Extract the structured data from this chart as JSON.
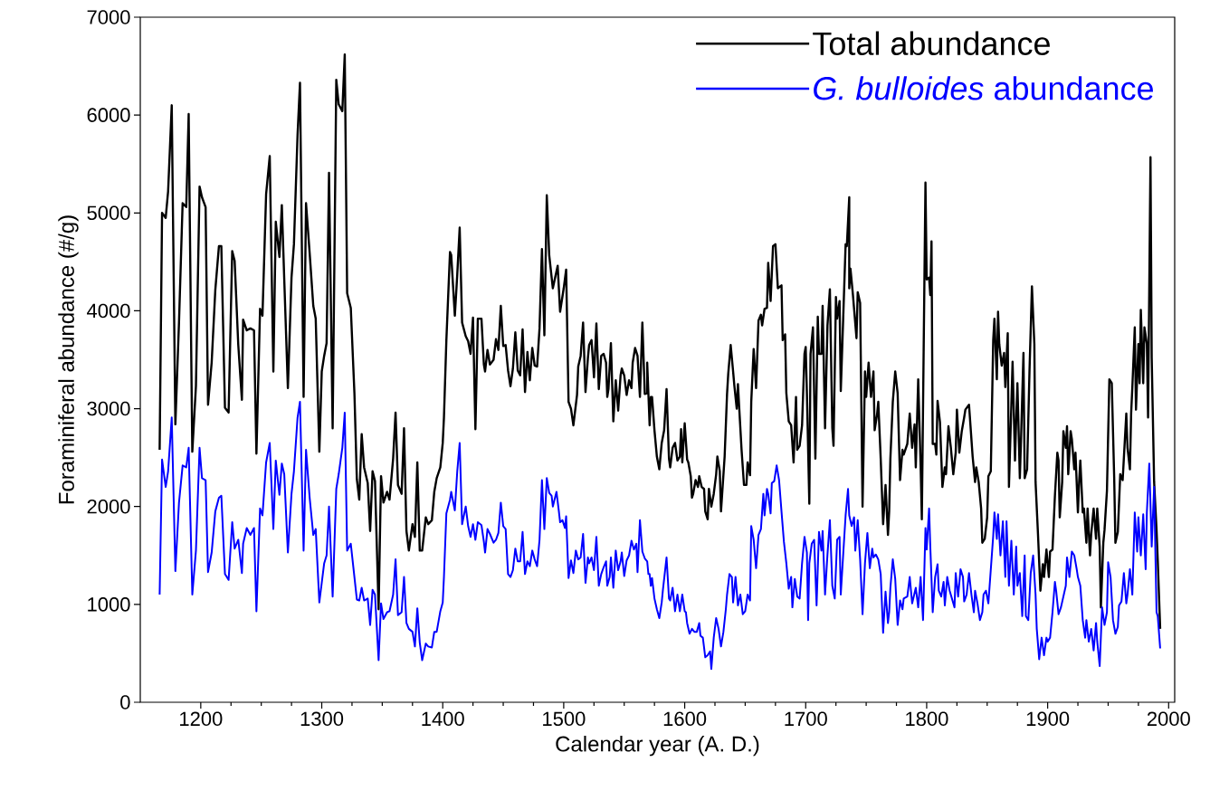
{
  "chart_data": {
    "type": "line",
    "xlabel": "Calendar year (A. D.)",
    "ylabel": "Foraminiferal abundance (#/g)",
    "xlim": [
      1150,
      2005
    ],
    "xticks": [
      1200,
      1300,
      1400,
      1500,
      1600,
      1700,
      1800,
      1900,
      2000
    ],
    "ylim": [
      0,
      7000
    ],
    "yticks": [
      0,
      1000,
      2000,
      3000,
      4000,
      5000,
      6000,
      7000
    ],
    "legend": "top right",
    "series": [
      {
        "name": "Total abundance",
        "color": "#000000",
        "x": [
          1166,
          1168,
          1171,
          1173,
          1176,
          1179,
          1182,
          1185,
          1188,
          1190,
          1193,
          1196,
          1199,
          1201,
          1204,
          1206,
          1209,
          1212,
          1215,
          1217,
          1220,
          1223,
          1226,
          1228,
          1231,
          1234,
          1235,
          1238,
          1241,
          1244,
          1246,
          1249,
          1251,
          1254,
          1257,
          1260,
          1262,
          1265,
          1267,
          1269,
          1272,
          1275,
          1277,
          1280,
          1282,
          1285,
          1287,
          1290,
          1293,
          1295,
          1298,
          1300,
          1302,
          1304,
          1306,
          1309,
          1312,
          1314,
          1317,
          1319,
          1321,
          1324,
          1327,
          1329,
          1331,
          1333,
          1335,
          1338,
          1340,
          1342,
          1344,
          1347,
          1349,
          1351,
          1354,
          1356,
          1359,
          1361,
          1363,
          1366,
          1368,
          1370,
          1372,
          1375,
          1377,
          1379,
          1381,
          1383,
          1386,
          1388,
          1391,
          1393,
          1395,
          1398,
          1400,
          1401,
          1403,
          1406,
          1407,
          1410,
          1412,
          1414,
          1416,
          1419,
          1421,
          1423,
          1425,
          1427,
          1429,
          1432,
          1434,
          1435,
          1437,
          1439,
          1442,
          1444,
          1446,
          1448,
          1450,
          1452,
          1454,
          1456,
          1458,
          1460,
          1462,
          1464,
          1466,
          1468,
          1470,
          1472,
          1474,
          1476,
          1478,
          1480,
          1482,
          1484,
          1486,
          1488,
          1491,
          1495,
          1497,
          1500,
          1502,
          1504,
          1506,
          1508,
          1511,
          1512,
          1514,
          1516,
          1518,
          1520,
          1521,
          1523,
          1525,
          1527,
          1529,
          1531,
          1533,
          1535,
          1536,
          1537,
          1539,
          1541,
          1543,
          1545,
          1547,
          1548,
          1550,
          1552,
          1554,
          1556,
          1557,
          1559,
          1561,
          1563,
          1565,
          1567,
          1569,
          1569,
          1571,
          1572,
          1573,
          1575,
          1577,
          1579,
          1581,
          1583,
          1585,
          1587,
          1588,
          1590,
          1592,
          1594,
          1596,
          1597,
          1598,
          1600,
          1602,
          1603,
          1605,
          1606,
          1607,
          1609,
          1611,
          1612,
          1614,
          1616,
          1617,
          1619,
          1620,
          1622,
          1624,
          1626,
          1627,
          1629,
          1630,
          1633,
          1635,
          1636,
          1638,
          1640,
          1641,
          1643,
          1644,
          1645,
          1647,
          1649,
          1651,
          1652,
          1654,
          1655,
          1657,
          1659,
          1661,
          1663,
          1664,
          1666,
          1668,
          1669,
          1671,
          1673,
          1675,
          1677,
          1680,
          1681,
          1683,
          1684,
          1686,
          1688,
          1690,
          1692,
          1693,
          1695,
          1697,
          1699,
          1700,
          1701,
          1703,
          1704,
          1706,
          1708,
          1710,
          1711,
          1713,
          1714,
          1716,
          1718,
          1720,
          1722,
          1723,
          1725,
          1726,
          1728,
          1729,
          1731,
          1733,
          1734,
          1736,
          1736,
          1737,
          1739,
          1742,
          1743,
          1745,
          1747,
          1749,
          1750,
          1752,
          1754,
          1756,
          1757,
          1759,
          1760,
          1762,
          1764,
          1766,
          1768,
          1769,
          1770,
          1772,
          1774,
          1776,
          1778,
          1780,
          1781,
          1784,
          1786,
          1788,
          1790,
          1791,
          1793,
          1795,
          1796,
          1799,
          1800,
          1802,
          1803,
          1804,
          1805,
          1807,
          1808,
          1809,
          1811,
          1813,
          1815,
          1816,
          1818,
          1820,
          1822,
          1824,
          1825,
          1827,
          1829,
          1831,
          1832,
          1835,
          1838,
          1840,
          1841,
          1843,
          1845,
          1846,
          1848,
          1850,
          1851,
          1853,
          1855,
          1856,
          1858,
          1859,
          1860,
          1862,
          1864,
          1865,
          1867,
          1868,
          1870,
          1871,
          1873,
          1874,
          1875,
          1877,
          1878,
          1880,
          1881,
          1883,
          1885,
          1887,
          1889,
          1890,
          1892,
          1894,
          1896,
          1897,
          1899,
          1901,
          1902,
          1904,
          1906,
          1908,
          1909,
          1910,
          1912,
          1913,
          1915,
          1916,
          1917,
          1919,
          1920,
          1922,
          1923,
          1925,
          1926,
          1927,
          1929,
          1930,
          1932,
          1933,
          1935,
          1936,
          1938,
          1940,
          1941,
          1943,
          1944,
          1946,
          1947,
          1949,
          1951,
          1953,
          1955,
          1956,
          1958,
          1960,
          1962,
          1965,
          1966,
          1968,
          1969,
          1970,
          1972,
          1973,
          1975,
          1976,
          1977,
          1979,
          1980,
          1982,
          1983,
          1985,
          1986,
          1988,
          1990,
          1991,
          1993
        ],
        "values": [
          2580,
          5000,
          4950,
          5220,
          6100,
          2840,
          3880,
          5100,
          5060,
          6010,
          2560,
          3230,
          5270,
          5160,
          5060,
          3040,
          3470,
          4210,
          4660,
          4660,
          3010,
          2960,
          4610,
          4510,
          3650,
          3090,
          3910,
          3800,
          3820,
          3800,
          2540,
          4020,
          3950,
          5190,
          5580,
          3380,
          4910,
          4550,
          5080,
          4320,
          3210,
          4340,
          4680,
          5800,
          6330,
          3120,
          5100,
          4590,
          4050,
          3920,
          2560,
          3380,
          3540,
          3670,
          5410,
          2800,
          6360,
          6110,
          6040,
          6620,
          4180,
          4030,
          3160,
          2280,
          2070,
          2740,
          2400,
          2240,
          1750,
          2360,
          2260,
          950,
          2310,
          2040,
          2150,
          2070,
          2490,
          2960,
          2220,
          2130,
          2800,
          1750,
          1550,
          1820,
          1690,
          2450,
          1550,
          1550,
          1890,
          1820,
          1860,
          2150,
          2290,
          2400,
          2650,
          2910,
          3700,
          4600,
          4570,
          3950,
          4370,
          4850,
          3880,
          3740,
          3690,
          3560,
          3930,
          2790,
          3920,
          3920,
          3450,
          3380,
          3600,
          3450,
          3500,
          3710,
          3600,
          4050,
          3640,
          3650,
          3390,
          3230,
          3410,
          3780,
          3390,
          3340,
          3810,
          3170,
          3580,
          3290,
          3620,
          3440,
          3430,
          3820,
          4630,
          3750,
          5180,
          4570,
          4230,
          4460,
          3990,
          4230,
          4420,
          3070,
          3000,
          2830,
          3140,
          3430,
          3540,
          3880,
          3170,
          3520,
          3650,
          3700,
          3320,
          3870,
          3200,
          3540,
          3560,
          3470,
          3120,
          3200,
          3670,
          2870,
          3290,
          2980,
          3340,
          3410,
          3340,
          3140,
          3290,
          3210,
          3470,
          3620,
          3540,
          3120,
          3880,
          3150,
          3160,
          3470,
          2830,
          3120,
          3120,
          2780,
          2510,
          2380,
          2650,
          2780,
          3200,
          2490,
          2400,
          2600,
          2650,
          2470,
          2510,
          2790,
          2450,
          2850,
          2480,
          2450,
          2310,
          2090,
          2130,
          2270,
          2200,
          2310,
          2200,
          2180,
          1950,
          1870,
          2180,
          2000,
          2130,
          2330,
          2510,
          2360,
          1950,
          2510,
          3150,
          3360,
          3650,
          3380,
          3240,
          3000,
          3250,
          3020,
          2580,
          2220,
          2220,
          2450,
          2320,
          3070,
          3610,
          3210,
          3900,
          3960,
          3850,
          4020,
          4030,
          4490,
          4100,
          4660,
          4680,
          4230,
          4260,
          3700,
          3760,
          3160,
          2870,
          2830,
          2450,
          3120,
          2580,
          2620,
          2830,
          3560,
          3630,
          3160,
          2030,
          3560,
          3830,
          2490,
          3940,
          3560,
          3560,
          4050,
          2800,
          3850,
          4220,
          2800,
          2620,
          4140,
          3920,
          4100,
          3180,
          3920,
          4680,
          4660,
          5160,
          4230,
          4430,
          4170,
          3720,
          4190,
          4080,
          2000,
          3380,
          3120,
          3470,
          3120,
          3380,
          2780,
          2940,
          3070,
          2490,
          1820,
          2220,
          1710,
          1950,
          2490,
          3070,
          3380,
          3160,
          2270,
          2580,
          2530,
          2640,
          2950,
          2600,
          2840,
          2400,
          3300,
          2420,
          1870,
          5310,
          4320,
          4340,
          4160,
          4710,
          2640,
          2640,
          2530,
          3080,
          2860,
          2200,
          2400,
          2330,
          2820,
          2600,
          2330,
          2550,
          2990,
          2550,
          2770,
          2910,
          2990,
          3040,
          2510,
          2250,
          2400,
          2250,
          1980,
          1630,
          1670,
          1890,
          2310,
          2360,
          3700,
          3920,
          3300,
          3990,
          3660,
          3440,
          3570,
          3220,
          3770,
          2200,
          3040,
          3480,
          2470,
          2880,
          3260,
          2290,
          2690,
          3570,
          2290,
          2380,
          3390,
          4250,
          3660,
          2250,
          1720,
          1140,
          1410,
          1280,
          1560,
          1280,
          1540,
          1560,
          2110,
          2550,
          2470,
          1890,
          2250,
          2770,
          2600,
          2820,
          2330,
          2770,
          2690,
          2380,
          2550,
          1940,
          2250,
          2470,
          1940,
          1980,
          1630,
          1980,
          1500,
          1720,
          1980,
          1670,
          1980,
          1590,
          970,
          1630,
          1760,
          2160,
          3300,
          3260,
          2290,
          1630,
          1740,
          2330,
          2270,
          2950,
          2600,
          2380,
          2950,
          3220,
          3830,
          2990,
          3660,
          3260,
          4010,
          3260,
          3830,
          3660,
          2910,
          5570,
          3520,
          2250,
          1760,
          1450,
          750
        ]
      },
      {
        "name": "*G. bulloides* abundance",
        "color": "#0000ff",
        "x": [
          1166,
          1168,
          1171,
          1173,
          1176,
          1179,
          1182,
          1185,
          1188,
          1190,
          1193,
          1196,
          1199,
          1201,
          1204,
          1206,
          1209,
          1212,
          1215,
          1217,
          1220,
          1223,
          1226,
          1228,
          1231,
          1234,
          1235,
          1238,
          1241,
          1244,
          1246,
          1249,
          1251,
          1254,
          1257,
          1260,
          1262,
          1265,
          1267,
          1269,
          1272,
          1275,
          1277,
          1280,
          1282,
          1285,
          1287,
          1290,
          1293,
          1295,
          1298,
          1300,
          1302,
          1304,
          1306,
          1309,
          1312,
          1314,
          1317,
          1319,
          1321,
          1324,
          1327,
          1329,
          1331,
          1333,
          1335,
          1338,
          1340,
          1342,
          1344,
          1347,
          1349,
          1351,
          1354,
          1356,
          1359,
          1361,
          1363,
          1366,
          1368,
          1370,
          1372,
          1375,
          1377,
          1379,
          1381,
          1383,
          1386,
          1388,
          1391,
          1393,
          1395,
          1398,
          1400,
          1401,
          1403,
          1406,
          1407,
          1410,
          1412,
          1414,
          1416,
          1419,
          1421,
          1423,
          1425,
          1427,
          1429,
          1432,
          1434,
          1435,
          1437,
          1439,
          1442,
          1444,
          1446,
          1448,
          1450,
          1452,
          1454,
          1456,
          1458,
          1460,
          1462,
          1464,
          1466,
          1468,
          1470,
          1472,
          1474,
          1476,
          1478,
          1480,
          1482,
          1484,
          1486,
          1488,
          1490,
          1491,
          1494,
          1496,
          1497,
          1499,
          1501,
          1502,
          1504,
          1506,
          1508,
          1510,
          1512,
          1514,
          1516,
          1518,
          1520,
          1521,
          1523,
          1525,
          1527,
          1529,
          1531,
          1533,
          1535,
          1536,
          1538,
          1539,
          1541,
          1543,
          1545,
          1547,
          1548,
          1550,
          1552,
          1554,
          1556,
          1558,
          1560,
          1561,
          1563,
          1565,
          1567,
          1569,
          1570,
          1571,
          1572,
          1573,
          1575,
          1577,
          1579,
          1581,
          1582,
          1585,
          1587,
          1588,
          1590,
          1592,
          1594,
          1596,
          1598,
          1600,
          1601,
          1602,
          1604,
          1606,
          1608,
          1610,
          1612,
          1613,
          1615,
          1617,
          1619,
          1621,
          1622,
          1624,
          1626,
          1628,
          1630,
          1632,
          1634,
          1635,
          1637,
          1639,
          1640,
          1642,
          1644,
          1646,
          1648,
          1650,
          1652,
          1654,
          1655,
          1657,
          1659,
          1661,
          1663,
          1665,
          1666,
          1668,
          1669,
          1671,
          1672,
          1674,
          1676,
          1678,
          1680,
          1682,
          1684,
          1686,
          1688,
          1689,
          1691,
          1693,
          1695,
          1697,
          1699,
          1701,
          1702,
          1703,
          1705,
          1707,
          1709,
          1711,
          1713,
          1714,
          1716,
          1718,
          1720,
          1722,
          1724,
          1726,
          1728,
          1729,
          1731,
          1733,
          1735,
          1736,
          1738,
          1740,
          1741,
          1743,
          1745,
          1747,
          1749,
          1751,
          1753,
          1755,
          1756,
          1758,
          1760,
          1762,
          1764,
          1766,
          1768,
          1769,
          1770,
          1772,
          1774,
          1776,
          1778,
          1780,
          1781,
          1784,
          1786,
          1788,
          1791,
          1793,
          1795,
          1797,
          1799,
          1800,
          1802,
          1803,
          1805,
          1807,
          1809,
          1810,
          1812,
          1814,
          1815,
          1817,
          1819,
          1823,
          1824,
          1826,
          1828,
          1830,
          1831,
          1833,
          1835,
          1837,
          1839,
          1840,
          1842,
          1844,
          1846,
          1847,
          1849,
          1851,
          1855,
          1856,
          1858,
          1859,
          1861,
          1863,
          1865,
          1866,
          1868,
          1870,
          1872,
          1874,
          1875,
          1877,
          1879,
          1881,
          1882,
          1884,
          1886,
          1888,
          1890,
          1891,
          1893,
          1895,
          1897,
          1899,
          1900,
          1902,
          1904,
          1906,
          1907,
          1909,
          1911,
          1913,
          1915,
          1916,
          1918,
          1920,
          1922,
          1924,
          1925,
          1927,
          1929,
          1931,
          1932,
          1934,
          1936,
          1938,
          1940,
          1941,
          1943,
          1945,
          1947,
          1949,
          1950,
          1952,
          1954,
          1956,
          1958,
          1959,
          1961,
          1963,
          1965,
          1966,
          1968,
          1970,
          1972,
          1974,
          1975,
          1977,
          1979,
          1981,
          1982,
          1984,
          1986,
          1988,
          1990,
          1991,
          1993
        ],
        "values": [
          1100,
          2480,
          2200,
          2360,
          2910,
          1340,
          2040,
          2420,
          2400,
          2600,
          1100,
          1550,
          2600,
          2290,
          2270,
          1330,
          1530,
          1950,
          2090,
          2110,
          1310,
          1250,
          1840,
          1570,
          1660,
          1320,
          1620,
          1780,
          1710,
          1780,
          930,
          1980,
          1910,
          2450,
          2650,
          1770,
          2470,
          2120,
          2440,
          2330,
          1530,
          2130,
          2360,
          2910,
          3070,
          1550,
          2580,
          2090,
          1710,
          1770,
          1020,
          1220,
          1420,
          1500,
          2000,
          1080,
          2180,
          2330,
          2600,
          2960,
          1550,
          1620,
          1280,
          1050,
          1040,
          1170,
          1040,
          1060,
          790,
          1150,
          1100,
          430,
          1010,
          850,
          920,
          930,
          1100,
          1460,
          890,
          920,
          1280,
          810,
          750,
          720,
          570,
          960,
          610,
          430,
          600,
          570,
          560,
          720,
          720,
          930,
          1020,
          1280,
          1930,
          2070,
          2150,
          1960,
          2360,
          2650,
          1820,
          2000,
          1800,
          1690,
          1820,
          1660,
          1840,
          1810,
          1640,
          1530,
          1770,
          1720,
          1630,
          1660,
          1730,
          2040,
          1800,
          1770,
          1310,
          1280,
          1350,
          1570,
          1440,
          1440,
          1740,
          1310,
          1440,
          1390,
          1550,
          1460,
          1390,
          1660,
          2270,
          1770,
          2290,
          2140,
          2110,
          2000,
          2150,
          1950,
          1840,
          1860,
          1780,
          1900,
          1270,
          1450,
          1320,
          1550,
          1460,
          1480,
          1720,
          1220,
          1480,
          1420,
          1480,
          1350,
          1690,
          1190,
          1310,
          1380,
          1440,
          1190,
          1280,
          1480,
          1170,
          1550,
          1350,
          1440,
          1530,
          1290,
          1450,
          1500,
          1650,
          1560,
          1620,
          1330,
          1860,
          1540,
          1470,
          1440,
          1310,
          1310,
          1190,
          1270,
          1060,
          950,
          860,
          1020,
          1150,
          1480,
          1060,
          1040,
          1170,
          930,
          1100,
          930,
          1100,
          930,
          920,
          810,
          700,
          750,
          720,
          720,
          810,
          680,
          660,
          460,
          480,
          520,
          340,
          660,
          860,
          750,
          570,
          720,
          950,
          1100,
          1310,
          1280,
          1020,
          1280,
          990,
          1100,
          900,
          930,
          1100,
          1040,
          1800,
          1660,
          1370,
          1710,
          1770,
          2130,
          1910,
          2180,
          2130,
          1930,
          2240,
          2260,
          2420,
          2270,
          1950,
          1640,
          1420,
          1160,
          1280,
          970,
          1260,
          1080,
          1060,
          1420,
          1690,
          1530,
          840,
          1420,
          1620,
          1660,
          990,
          1740,
          1550,
          1750,
          1100,
          1510,
          1860,
          1190,
          1060,
          1660,
          1690,
          1100,
          1510,
          1910,
          2180,
          1910,
          1800,
          1890,
          1550,
          1860,
          1460,
          900,
          1420,
          1730,
          1370,
          1570,
          1480,
          1510,
          1460,
          1310,
          710,
          1130,
          810,
          920,
          1170,
          1460,
          1260,
          790,
          1040,
          950,
          1060,
          1080,
          1280,
          1010,
          1170,
          970,
          1280,
          840,
          1780,
          1560,
          1980,
          1590,
          920,
          1280,
          1410,
          1140,
          1080,
          1230,
          990,
          1280,
          1140,
          970,
          1320,
          1080,
          1360,
          1280,
          1030,
          1100,
          1320,
          1100,
          920,
          1140,
          1010,
          840,
          920,
          1100,
          1140,
          1010,
          1700,
          1940,
          1670,
          1920,
          1500,
          1850,
          1280,
          1850,
          1190,
          1650,
          1100,
          1590,
          1190,
          1320,
          880,
          1500,
          880,
          840,
          1320,
          1500,
          1100,
          750,
          440,
          660,
          480,
          660,
          620,
          660,
          920,
          1230,
          1140,
          900,
          970,
          1080,
          1190,
          1480,
          1280,
          1540,
          1500,
          1360,
          1280,
          1190,
          840,
          660,
          840,
          620,
          750,
          530,
          810,
          620,
          370,
          970,
          790,
          920,
          1430,
          1280,
          840,
          700,
          770,
          990,
          1030,
          1320,
          1010,
          1100,
          1360,
          1100,
          1940,
          1540,
          1890,
          1500,
          1920,
          1360,
          1940,
          2440,
          1590,
          2200,
          920,
          880,
          550
        ]
      }
    ]
  }
}
